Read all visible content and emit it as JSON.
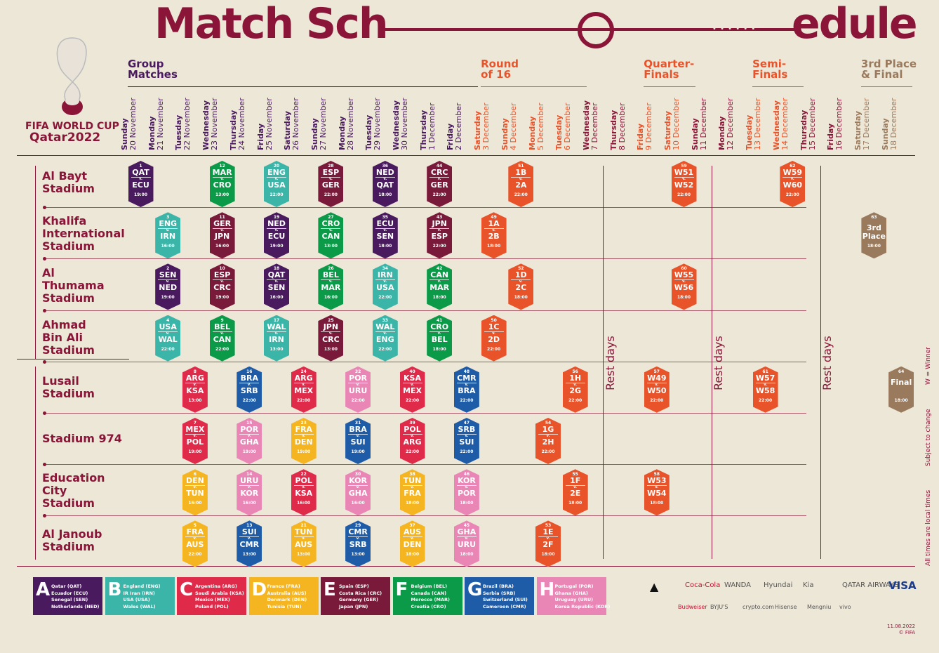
{
  "title": {
    "left": "Match Sch",
    "right": "edule"
  },
  "brand": {
    "line1": "FIFA WORLD CUP",
    "line2": "Qatar2022"
  },
  "colors": {
    "maroon": "#8a1538",
    "purple": "#4a1a5f",
    "orange": "#e8532a",
    "brown": "#9a7a5d"
  },
  "phases": [
    {
      "label": "Group\nMatches",
      "color": "#4a1a5f"
    },
    {
      "label": "Round\nof 16",
      "color": "#e8532a"
    },
    {
      "label": "Quarter-\nFinals",
      "color": "#e8532a"
    },
    {
      "label": "Semi-\nFinals",
      "color": "#e8532a"
    },
    {
      "label": "3rd Place\n& Final",
      "color": "#9a7a5d"
    }
  ],
  "days": [
    {
      "dow": "Sunday",
      "date": "20 November",
      "c": "#4a1a5f"
    },
    {
      "dow": "Monday",
      "date": "21 November",
      "c": "#4a1a5f"
    },
    {
      "dow": "Tuesday",
      "date": "22 November",
      "c": "#4a1a5f"
    },
    {
      "dow": "Wednesday",
      "date": "23 November",
      "c": "#4a1a5f"
    },
    {
      "dow": "Thursday",
      "date": "24 November",
      "c": "#4a1a5f"
    },
    {
      "dow": "Friday",
      "date": "25 November",
      "c": "#4a1a5f"
    },
    {
      "dow": "Saturday",
      "date": "26 November",
      "c": "#4a1a5f"
    },
    {
      "dow": "Sunday",
      "date": "27 November",
      "c": "#4a1a5f"
    },
    {
      "dow": "Monday",
      "date": "28 November",
      "c": "#4a1a5f"
    },
    {
      "dow": "Tuesday",
      "date": "29 November",
      "c": "#4a1a5f"
    },
    {
      "dow": "Wednesday",
      "date": "30 November",
      "c": "#4a1a5f"
    },
    {
      "dow": "Thursday",
      "date": "1 December",
      "c": "#4a1a5f"
    },
    {
      "dow": "Friday",
      "date": "2 December",
      "c": "#4a1a5f"
    },
    {
      "dow": "Saturday",
      "date": "3 December",
      "c": "#e8532a"
    },
    {
      "dow": "Sunday",
      "date": "4 December",
      "c": "#e8532a"
    },
    {
      "dow": "Monday",
      "date": "5 December",
      "c": "#e8532a"
    },
    {
      "dow": "Tuesday",
      "date": "6 December",
      "c": "#e8532a"
    },
    {
      "dow": "Wednesday",
      "date": "7 December",
      "c": "#8a1538"
    },
    {
      "dow": "Thursday",
      "date": "8 December",
      "c": "#8a1538"
    },
    {
      "dow": "Friday",
      "date": "9 December",
      "c": "#e8532a"
    },
    {
      "dow": "Saturday",
      "date": "10 December",
      "c": "#e8532a"
    },
    {
      "dow": "Sunday",
      "date": "11 December",
      "c": "#8a1538"
    },
    {
      "dow": "Monday",
      "date": "12 December",
      "c": "#8a1538"
    },
    {
      "dow": "Tuesday",
      "date": "13 December",
      "c": "#e8532a"
    },
    {
      "dow": "Wednesday",
      "date": "14 December",
      "c": "#e8532a"
    },
    {
      "dow": "Thursday",
      "date": "15 December",
      "c": "#8a1538"
    },
    {
      "dow": "Friday",
      "date": "16 December",
      "c": "#8a1538"
    },
    {
      "dow": "Saturday",
      "date": "17 December",
      "c": "#9a7a5d"
    },
    {
      "dow": "Sunday",
      "date": "18 December",
      "c": "#9a7a5d"
    }
  ],
  "venues": [
    "Al Bayt\nStadium",
    "Khalifa\nInternational\nStadium",
    "Al\nThumama\nStadium",
    "Ahmad\nBin Ali\nStadium",
    "Lusail\nStadium",
    "Stadium 974",
    "Education\nCity\nStadium",
    "Al Janoub\nStadium"
  ],
  "rest_label": "Rest days",
  "side_notes": [
    "W = Winner",
    "Subject to change",
    "All times are local times"
  ],
  "matches": [
    {
      "n": "1",
      "a": "QAT",
      "b": "ECU",
      "t": "19:00",
      "c": "#4a1a5f",
      "d": 0,
      "v": 0
    },
    {
      "n": "12",
      "a": "MAR",
      "b": "CRO",
      "t": "13:00",
      "c": "#0a9a48",
      "d": 3,
      "v": 0
    },
    {
      "n": "20",
      "a": "ENG",
      "b": "USA",
      "t": "22:00",
      "c": "#3bb5a8",
      "d": 5,
      "v": 0
    },
    {
      "n": "28",
      "a": "ESP",
      "b": "GER",
      "t": "22:00",
      "c": "#7a1a3a",
      "d": 7,
      "v": 0
    },
    {
      "n": "36",
      "a": "NED",
      "b": "QAT",
      "t": "18:00",
      "c": "#4a1a5f",
      "d": 9,
      "v": 0
    },
    {
      "n": "44",
      "a": "CRC",
      "b": "GER",
      "t": "22:00",
      "c": "#7a1a3a",
      "d": 11,
      "v": 0
    },
    {
      "n": "3",
      "a": "ENG",
      "b": "IRN",
      "t": "16:00",
      "c": "#3bb5a8",
      "d": 1,
      "v": 1
    },
    {
      "n": "11",
      "a": "GER",
      "b": "JPN",
      "t": "16:00",
      "c": "#7a1a3a",
      "d": 3,
      "v": 1
    },
    {
      "n": "19",
      "a": "NED",
      "b": "ECU",
      "t": "19:00",
      "c": "#4a1a5f",
      "d": 5,
      "v": 1
    },
    {
      "n": "27",
      "a": "CRO",
      "b": "CAN",
      "t": "13:00",
      "c": "#0a9a48",
      "d": 7,
      "v": 1
    },
    {
      "n": "35",
      "a": "ECU",
      "b": "SEN",
      "t": "18:00",
      "c": "#4a1a5f",
      "d": 9,
      "v": 1
    },
    {
      "n": "43",
      "a": "JPN",
      "b": "ESP",
      "t": "22:00",
      "c": "#7a1a3a",
      "d": 11,
      "v": 1
    },
    {
      "n": "2",
      "a": "SEN",
      "b": "NED",
      "t": "19:00",
      "c": "#4a1a5f",
      "d": 1,
      "v": 2
    },
    {
      "n": "10",
      "a": "ESP",
      "b": "CRC",
      "t": "19:00",
      "c": "#7a1a3a",
      "d": 3,
      "v": 2
    },
    {
      "n": "18",
      "a": "QAT",
      "b": "SEN",
      "t": "16:00",
      "c": "#4a1a5f",
      "d": 5,
      "v": 2
    },
    {
      "n": "26",
      "a": "BEL",
      "b": "MAR",
      "t": "16:00",
      "c": "#0a9a48",
      "d": 7,
      "v": 2
    },
    {
      "n": "34",
      "a": "IRN",
      "b": "USA",
      "t": "22:00",
      "c": "#3bb5a8",
      "d": 9,
      "v": 2
    },
    {
      "n": "42",
      "a": "CAN",
      "b": "MAR",
      "t": "18:00",
      "c": "#0a9a48",
      "d": 11,
      "v": 2
    },
    {
      "n": "4",
      "a": "USA",
      "b": "WAL",
      "t": "22:00",
      "c": "#3bb5a8",
      "d": 1,
      "v": 3
    },
    {
      "n": "9",
      "a": "BEL",
      "b": "CAN",
      "t": "22:00",
      "c": "#0a9a48",
      "d": 3,
      "v": 3
    },
    {
      "n": "17",
      "a": "WAL",
      "b": "IRN",
      "t": "13:00",
      "c": "#3bb5a8",
      "d": 5,
      "v": 3
    },
    {
      "n": "25",
      "a": "JPN",
      "b": "CRC",
      "t": "13:00",
      "c": "#7a1a3a",
      "d": 7,
      "v": 3
    },
    {
      "n": "33",
      "a": "WAL",
      "b": "ENG",
      "t": "22:00",
      "c": "#3bb5a8",
      "d": 9,
      "v": 3
    },
    {
      "n": "41",
      "a": "CRO",
      "b": "BEL",
      "t": "18:00",
      "c": "#0a9a48",
      "d": 11,
      "v": 3
    },
    {
      "n": "8",
      "a": "ARG",
      "b": "KSA",
      "t": "13:00",
      "c": "#e02a4a",
      "d": 2,
      "v": 4
    },
    {
      "n": "16",
      "a": "BRA",
      "b": "SRB",
      "t": "22:00",
      "c": "#1f5ca8",
      "d": 4,
      "v": 4
    },
    {
      "n": "24",
      "a": "ARG",
      "b": "MEX",
      "t": "22:00",
      "c": "#e02a4a",
      "d": 6,
      "v": 4
    },
    {
      "n": "32",
      "a": "POR",
      "b": "URU",
      "t": "22:00",
      "c": "#ea86b6",
      "d": 8,
      "v": 4
    },
    {
      "n": "40",
      "a": "KSA",
      "b": "MEX",
      "t": "22:00",
      "c": "#e02a4a",
      "d": 10,
      "v": 4
    },
    {
      "n": "48",
      "a": "CMR",
      "b": "BRA",
      "t": "22:00",
      "c": "#1f5ca8",
      "d": 12,
      "v": 4
    },
    {
      "n": "7",
      "a": "MEX",
      "b": "POL",
      "t": "19:00",
      "c": "#e02a4a",
      "d": 2,
      "v": 5
    },
    {
      "n": "15",
      "a": "POR",
      "b": "GHA",
      "t": "19:00",
      "c": "#ea86b6",
      "d": 4,
      "v": 5
    },
    {
      "n": "23",
      "a": "FRA",
      "b": "DEN",
      "t": "19:00",
      "c": "#f5b521",
      "d": 6,
      "v": 5
    },
    {
      "n": "31",
      "a": "BRA",
      "b": "SUI",
      "t": "19:00",
      "c": "#1f5ca8",
      "d": 8,
      "v": 5
    },
    {
      "n": "39",
      "a": "POL",
      "b": "ARG",
      "t": "22:00",
      "c": "#e02a4a",
      "d": 10,
      "v": 5
    },
    {
      "n": "47",
      "a": "SRB",
      "b": "SUI",
      "t": "22:00",
      "c": "#1f5ca8",
      "d": 12,
      "v": 5
    },
    {
      "n": "6",
      "a": "DEN",
      "b": "TUN",
      "t": "16:00",
      "c": "#f5b521",
      "d": 2,
      "v": 6
    },
    {
      "n": "14",
      "a": "URU",
      "b": "KOR",
      "t": "16:00",
      "c": "#ea86b6",
      "d": 4,
      "v": 6
    },
    {
      "n": "22",
      "a": "POL",
      "b": "KSA",
      "t": "16:00",
      "c": "#e02a4a",
      "d": 6,
      "v": 6
    },
    {
      "n": "30",
      "a": "KOR",
      "b": "GHA",
      "t": "16:00",
      "c": "#ea86b6",
      "d": 8,
      "v": 6
    },
    {
      "n": "38",
      "a": "TUN",
      "b": "FRA",
      "t": "18:00",
      "c": "#f5b521",
      "d": 10,
      "v": 6
    },
    {
      "n": "46",
      "a": "KOR",
      "b": "POR",
      "t": "18:00",
      "c": "#ea86b6",
      "d": 12,
      "v": 6
    },
    {
      "n": "5",
      "a": "FRA",
      "b": "AUS",
      "t": "22:00",
      "c": "#f5b521",
      "d": 2,
      "v": 7
    },
    {
      "n": "13",
      "a": "SUI",
      "b": "CMR",
      "t": "13:00",
      "c": "#1f5ca8",
      "d": 4,
      "v": 7
    },
    {
      "n": "21",
      "a": "TUN",
      "b": "AUS",
      "t": "13:00",
      "c": "#f5b521",
      "d": 6,
      "v": 7
    },
    {
      "n": "29",
      "a": "CMR",
      "b": "SRB",
      "t": "13:00",
      "c": "#1f5ca8",
      "d": 8,
      "v": 7
    },
    {
      "n": "37",
      "a": "AUS",
      "b": "DEN",
      "t": "18:00",
      "c": "#f5b521",
      "d": 10,
      "v": 7
    },
    {
      "n": "45",
      "a": "GHA",
      "b": "URU",
      "t": "18:00",
      "c": "#ea86b6",
      "d": 12,
      "v": 7
    },
    {
      "n": "51",
      "a": "1B",
      "b": "2A",
      "t": "22:00",
      "c": "#e8532a",
      "d": 14,
      "v": 0
    },
    {
      "n": "49",
      "a": "1A",
      "b": "2B",
      "t": "18:00",
      "c": "#e8532a",
      "d": 13,
      "v": 1
    },
    {
      "n": "52",
      "a": "1D",
      "b": "2C",
      "t": "18:00",
      "c": "#e8532a",
      "d": 14,
      "v": 2
    },
    {
      "n": "50",
      "a": "1C",
      "b": "2D",
      "t": "22:00",
      "c": "#e8532a",
      "d": 13,
      "v": 3
    },
    {
      "n": "56",
      "a": "1H",
      "b": "2G",
      "t": "22:00",
      "c": "#e8532a",
      "d": 16,
      "v": 4
    },
    {
      "n": "54",
      "a": "1G",
      "b": "2H",
      "t": "22:00",
      "c": "#e8532a",
      "d": 15,
      "v": 5
    },
    {
      "n": "55",
      "a": "1F",
      "b": "2E",
      "t": "18:00",
      "c": "#e8532a",
      "d": 16,
      "v": 6
    },
    {
      "n": "53",
      "a": "1E",
      "b": "2F",
      "t": "18:00",
      "c": "#e8532a",
      "d": 15,
      "v": 7
    },
    {
      "n": "59",
      "a": "W51",
      "b": "W52",
      "t": "22:00",
      "c": "#e8532a",
      "d": 20,
      "v": 0
    },
    {
      "n": "60",
      "a": "W55",
      "b": "W56",
      "t": "18:00",
      "c": "#e8532a",
      "d": 20,
      "v": 2
    },
    {
      "n": "57",
      "a": "W49",
      "b": "W50",
      "t": "22:00",
      "c": "#e8532a",
      "d": 19,
      "v": 4
    },
    {
      "n": "58",
      "a": "W53",
      "b": "W54",
      "t": "18:00",
      "c": "#e8532a",
      "d": 19,
      "v": 6
    },
    {
      "n": "62",
      "a": "W59",
      "b": "W60",
      "t": "22:00",
      "c": "#e8532a",
      "d": 24,
      "v": 0
    },
    {
      "n": "61",
      "a": "W57",
      "b": "W58",
      "t": "22:00",
      "c": "#e8532a",
      "d": 23,
      "v": 4
    },
    {
      "n": "63",
      "a": "3rd",
      "b": "Place",
      "t": "18:00",
      "c": "#9a7a5d",
      "d": 27,
      "v": 1,
      "single": true
    },
    {
      "n": "64",
      "a": "Final",
      "b": "",
      "t": "18:00",
      "c": "#9a7a5d",
      "d": 28,
      "v": 4,
      "single": true
    }
  ],
  "groups": [
    {
      "letter": "A",
      "c": "#4a1a5f",
      "teams": "Qatar (QAT)\nEcuador (ECU)\nSenegal (SEN)\nNetherlands (NED)"
    },
    {
      "letter": "B",
      "c": "#3bb5a8",
      "teams": "England (ENG)\nIR Iran (IRN)\nUSA (USA)\nWales (WAL)"
    },
    {
      "letter": "C",
      "c": "#e02a4a",
      "teams": "Argentina (ARG)\nSaudi Arabia (KSA)\nMexico (MEX)\nPoland (POL)"
    },
    {
      "letter": "D",
      "c": "#f5b521",
      "teams": "France (FRA)\nAustralia (AUS)\nDenmark (DEN)\nTunisia (TUN)"
    },
    {
      "letter": "E",
      "c": "#7a1a3a",
      "teams": "Spain (ESP)\nCosta Rica (CRC)\nGermany (GER)\nJapan (JPN)"
    },
    {
      "letter": "F",
      "c": "#0a9a48",
      "teams": "Belgium (BEL)\nCanada (CAN)\nMorocco (MAR)\nCroatia (CRO)"
    },
    {
      "letter": "G",
      "c": "#1f5ca8",
      "teams": "Brazil (BRA)\nSerbia (SRB)\nSwitzerland (SUI)\nCameroon (CMR)"
    },
    {
      "letter": "H",
      "c": "#ea86b6",
      "teams": "Portugal (POR)\nGhana (GHA)\nUruguay (URU)\nKorea Republic (KOR)"
    }
  ],
  "sponsors_top": [
    "Coca-Cola",
    "WANDA",
    "Hyundai",
    "Kia",
    "QATAR AIRWAYS",
    "VISA"
  ],
  "sponsors_bottom": [
    "Budweiser",
    "BYJU'S",
    "crypto.com",
    "Hisense",
    "Mengniu",
    "vivo"
  ],
  "footer": {
    "date": "11.08.2022",
    "copyright": "© FIFA"
  }
}
